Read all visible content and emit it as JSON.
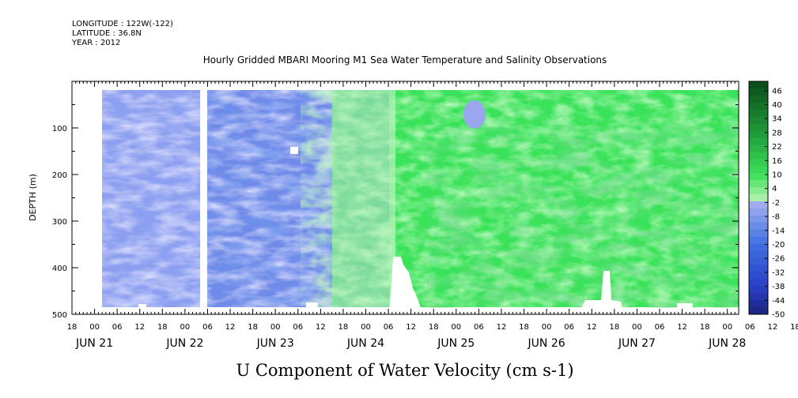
{
  "header": {
    "longitude": "LONGITUDE : 122W(-122)",
    "latitude": "LATITUDE : 36.8N",
    "year": "YEAR : 2012"
  },
  "chart_data": {
    "type": "heatmap",
    "title": "Hourly Gridded MBARI Mooring M1 Sea Water Temperature and Salinity Observations",
    "xlabel": "U Component of Water Velocity (cm s-1)",
    "ylabel": "DEPTH (m)",
    "ylim": [
      500,
      0
    ],
    "y_ticks": [
      100,
      200,
      300,
      400,
      500
    ],
    "y_tick_labels": [
      "100",
      "200",
      "300",
      "400",
      "500"
    ],
    "x_range_hours": [
      -6,
      171
    ],
    "x_hour_ticks": [
      "18",
      "00",
      "06",
      "12",
      "18",
      "00",
      "06",
      "12",
      "18",
      "00",
      "06",
      "12",
      "18",
      "00",
      "06",
      "12",
      "18",
      "00",
      "06",
      "12",
      "18",
      "00",
      "06",
      "12",
      "18",
      "00",
      "06",
      "12",
      "18",
      "00",
      "06",
      "12",
      "18"
    ],
    "x_date_labels": [
      "JUN 21",
      "JUN 22",
      "JUN 23",
      "JUN 24",
      "JUN 25",
      "JUN 26",
      "JUN 27",
      "JUN 28"
    ],
    "colorbar_labels": [
      "46",
      "40",
      "34",
      "28",
      "22",
      "16",
      "10",
      "4",
      "-2",
      "-8",
      "-14",
      "-20",
      "-26",
      "-32",
      "-38",
      "-44",
      "-50"
    ],
    "colorbar_range": [
      -50,
      50
    ],
    "colors": {
      "strong_negative": "#1a237e",
      "negative": "#3f6fe0",
      "weak_negative": "#aab4f0",
      "weak_positive": "#a8f0a8",
      "positive": "#3ce05a",
      "strong_positive": "#0a4a1a"
    }
  }
}
